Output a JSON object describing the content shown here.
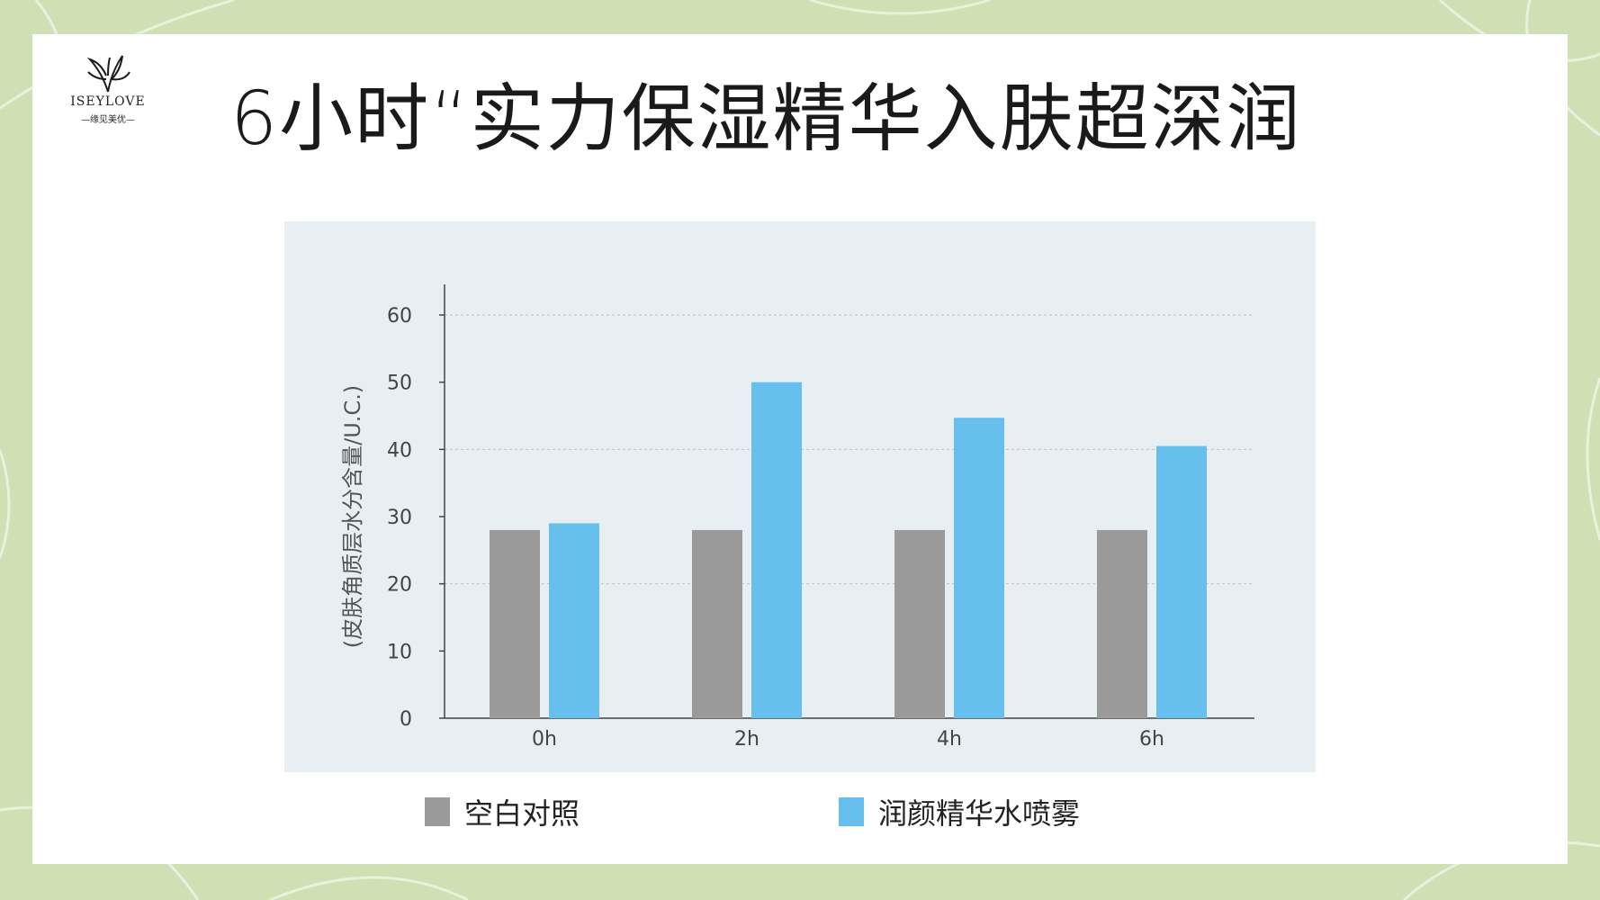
{
  "logo": {
    "name": "ISEYLOVE",
    "subtitle": "—缘见美优—"
  },
  "title": "6小时“实力保湿精华入肤超深润",
  "colors": {
    "frame_background": "#cfe0b4",
    "slide_background": "#ffffff",
    "chart_background": "#e8eff3",
    "control_bar": "#9a9a9a",
    "product_bar": "#66bfec",
    "axis": "#444444",
    "gridline": "#b8c2c8"
  },
  "legend": {
    "items": [
      {
        "label": "空白对照",
        "color": "#9a9a9a"
      },
      {
        "label": "润颜精华水喷雾",
        "color": "#66bfec"
      }
    ]
  },
  "chart_data": {
    "type": "bar",
    "title": "",
    "xlabel": "",
    "ylabel": "(皮肤角质层水分含量/U.C.)",
    "categories": [
      "0h",
      "2h",
      "4h",
      "6h"
    ],
    "series": [
      {
        "name": "空白对照",
        "values": [
          28,
          28,
          28,
          28
        ],
        "color": "#9a9a9a"
      },
      {
        "name": "润颜精华水喷雾",
        "values": [
          29,
          50,
          44.7,
          40.5
        ],
        "color": "#66bfec"
      }
    ],
    "ylim": [
      0,
      60
    ],
    "yticks": [
      0,
      10,
      20,
      30,
      40,
      50,
      60
    ],
    "gridlines": [
      20,
      40,
      60
    ],
    "grid": true,
    "legend_position": "bottom"
  }
}
